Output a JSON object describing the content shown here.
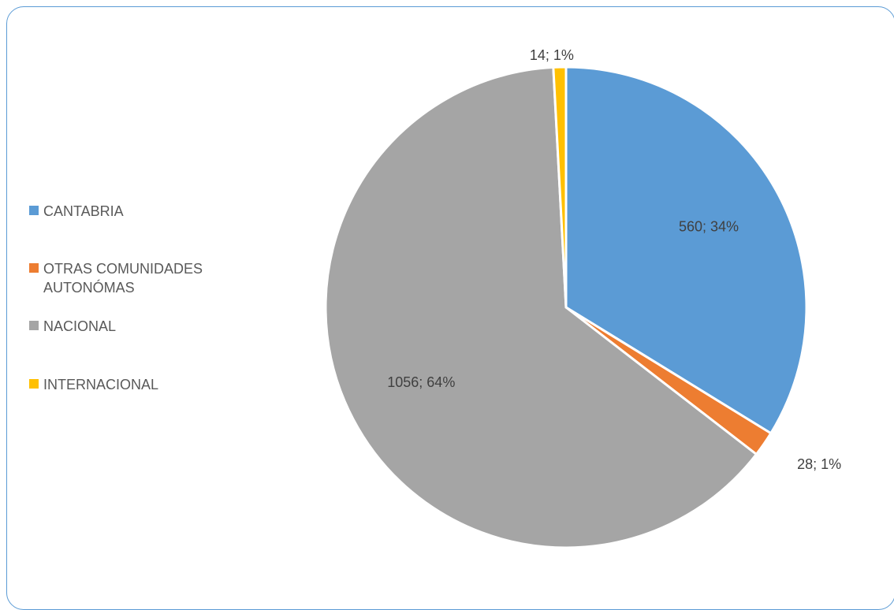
{
  "chart_data": {
    "type": "pie",
    "title": "",
    "legend_position": "left",
    "slices": [
      {
        "label": "CANTABRIA",
        "value": 560,
        "percent": "34%",
        "data_label": "560; 34%",
        "color": "#5b9bd5"
      },
      {
        "label": "OTRAS COMUNIDADES AUTONÓMAS",
        "value": 28,
        "percent": "1%",
        "data_label": "28; 1%",
        "color": "#ed7d31"
      },
      {
        "label": "NACIONAL",
        "value": 1056,
        "percent": "64%",
        "data_label": "1056; 64%",
        "color": "#a5a5a5"
      },
      {
        "label": "INTERNACIONAL",
        "value": 14,
        "percent": "1%",
        "data_label": "14; 1%",
        "color": "#ffc000"
      }
    ]
  }
}
